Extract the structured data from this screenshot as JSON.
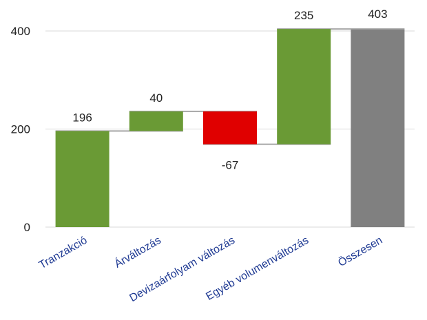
{
  "chart_data": {
    "type": "bar",
    "subtype": "waterfall",
    "categories": [
      "Tranzakció",
      "Árváltozás",
      "Devizaárfolyam változás",
      "Egyéb volumenváltozás",
      "Összesen"
    ],
    "values": [
      196,
      40,
      -67,
      235,
      403
    ],
    "data_labels": [
      "196",
      "40",
      "-67",
      "235",
      "403"
    ],
    "last_is_total": true,
    "ylim": [
      0,
      400
    ],
    "yticks": [
      0,
      200,
      400
    ],
    "ytick_labels": [
      "0",
      "200",
      "400"
    ],
    "grid": true,
    "legend": "none",
    "colors": {
      "increase": "#6a9a35",
      "decrease": "#e00000",
      "total": "#808080",
      "connector": "#a6a6a6",
      "grid": "#d9d9d9",
      "category_label": "#1f3a93"
    }
  }
}
